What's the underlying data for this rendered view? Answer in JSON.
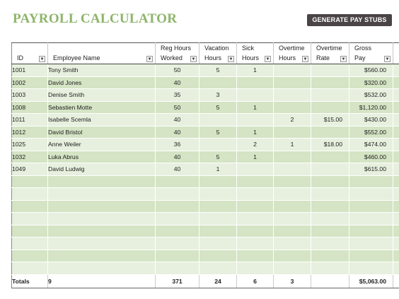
{
  "title": "PAYROLL CALCULATOR",
  "generate_button": "GENERATE  PAY STUBS",
  "columns": [
    {
      "line1": "",
      "line2": "ID"
    },
    {
      "line1": "",
      "line2": "Employee Name"
    },
    {
      "line1": "Reg Hours",
      "line2": "Worked"
    },
    {
      "line1": "Vacation",
      "line2": "Hours"
    },
    {
      "line1": "Sick",
      "line2": "Hours"
    },
    {
      "line1": "Overtime",
      "line2": "Hours"
    },
    {
      "line1": "Overtime",
      "line2": "Rate"
    },
    {
      "line1": "Gross",
      "line2": "Pay"
    }
  ],
  "dropdown_icon": "filter-dropdown-icon",
  "rows": [
    {
      "id": "1001",
      "name": "Tony Smith",
      "reg": "50",
      "vac": "5",
      "sick": "1",
      "ot": "",
      "rate": "",
      "gross": "$560.00"
    },
    {
      "id": "1002",
      "name": "David Jones",
      "reg": "40",
      "vac": "",
      "sick": "",
      "ot": "",
      "rate": "",
      "gross": "$320.00"
    },
    {
      "id": "1003",
      "name": "Denise Smith",
      "reg": "35",
      "vac": "3",
      "sick": "",
      "ot": "",
      "rate": "",
      "gross": "$532.00"
    },
    {
      "id": "1008",
      "name": "Sebastien Motte",
      "reg": "50",
      "vac": "5",
      "sick": "1",
      "ot": "",
      "rate": "",
      "gross": "$1,120.00"
    },
    {
      "id": "1011",
      "name": "Isabelle Scemla",
      "reg": "40",
      "vac": "",
      "sick": "",
      "ot": "2",
      "rate": "$15.00",
      "gross": "$430.00"
    },
    {
      "id": "1012",
      "name": "David Bristol",
      "reg": "40",
      "vac": "5",
      "sick": "1",
      "ot": "",
      "rate": "",
      "gross": "$552.00"
    },
    {
      "id": "1025",
      "name": "Anne Weiler",
      "reg": "36",
      "vac": "",
      "sick": "2",
      "ot": "1",
      "rate": "$18.00",
      "gross": "$474.00"
    },
    {
      "id": "1032",
      "name": "Luka Abrus",
      "reg": "40",
      "vac": "5",
      "sick": "1",
      "ot": "",
      "rate": "",
      "gross": "$460.00"
    },
    {
      "id": "1049",
      "name": "David Ludwig",
      "reg": "40",
      "vac": "1",
      "sick": "",
      "ot": "",
      "rate": "",
      "gross": "$615.00"
    }
  ],
  "totals": {
    "label": "Totals",
    "count": "9",
    "reg": "371",
    "vac": "24",
    "sick": "6",
    "ot": "3",
    "rate": "",
    "gross": "$5,063.00"
  },
  "colors": {
    "title": "#8db56a",
    "button": "#4a4446",
    "row_light": "#e7f0de",
    "row_dark": "#d4e4c4"
  }
}
